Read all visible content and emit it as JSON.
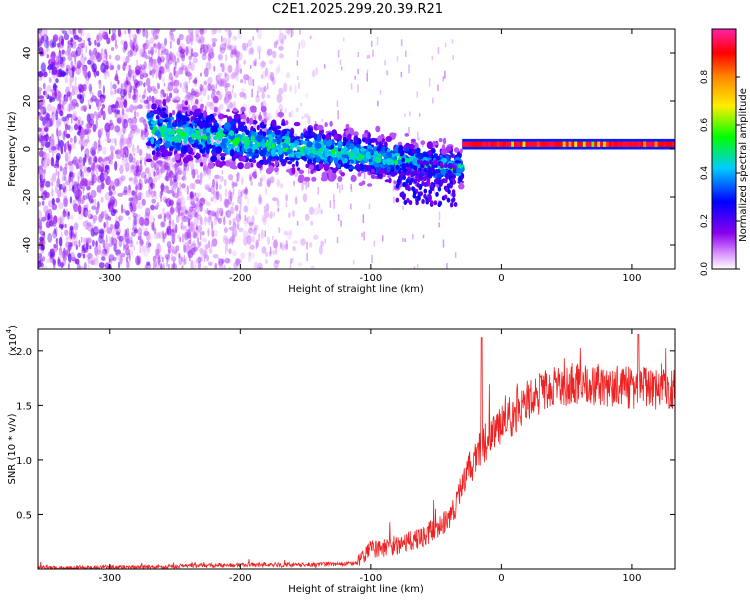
{
  "title": "C2E1.2025.299.20.39.R21",
  "chart_data": [
    {
      "type": "heatmap",
      "xlabel": "Height of straight line (km)",
      "ylabel": "Frequency (Hz)",
      "xlim": [
        -355,
        133
      ],
      "ylim": [
        -50,
        50
      ],
      "xticks": [
        -300,
        -200,
        -100,
        0,
        100
      ],
      "yticks": [
        -40,
        -20,
        0,
        20,
        40
      ],
      "colorbar": {
        "label": "Normalized spectral amplitude",
        "ticks": [
          "0.0",
          "0.2",
          "0.4",
          "0.6",
          "0.8"
        ],
        "range": [
          0,
          1
        ],
        "colors": [
          "#ffffff",
          "#8800ee",
          "#0000ff",
          "#00ccff",
          "#00ff00",
          "#ffee00",
          "#ff8800",
          "#ff0000",
          "#ff22aa"
        ]
      },
      "features": [
        {
          "segment": "diffuse_noise",
          "x_range": [
            -355,
            -130
          ],
          "y_range": [
            -50,
            50
          ],
          "amplitude": 0.15
        },
        {
          "segment": "descending_band",
          "x_range": [
            -270,
            -30
          ],
          "y_start": 8,
          "y_end": -8,
          "amplitude": 0.45
        },
        {
          "segment": "steady_line",
          "x_range": [
            -30,
            133
          ],
          "y": 2,
          "amplitude": 0.95
        }
      ]
    },
    {
      "type": "line",
      "xlabel": "Height of straight line (km)",
      "ylabel": "SNR (10 * v/v)",
      "yscale_label": "(x10",
      "yscale_exp": "4",
      "xlim": [
        -355,
        133
      ],
      "ylim": [
        0,
        2.2
      ],
      "xticks": [
        -300,
        -200,
        -100,
        0,
        100
      ],
      "yticks": [
        "0.5",
        "1.0",
        "1.5",
        "2.0"
      ],
      "color": "#ee2222",
      "profile": [
        {
          "x": -355,
          "y": 0.01
        },
        {
          "x": -260,
          "y": 0.02
        },
        {
          "x": -200,
          "y": 0.04
        },
        {
          "x": -150,
          "y": 0.04
        },
        {
          "x": -110,
          "y": 0.05
        },
        {
          "x": -100,
          "y": 0.18
        },
        {
          "x": -80,
          "y": 0.22
        },
        {
          "x": -60,
          "y": 0.3
        },
        {
          "x": -40,
          "y": 0.45
        },
        {
          "x": -30,
          "y": 0.75
        },
        {
          "x": -20,
          "y": 1.05
        },
        {
          "x": -10,
          "y": 1.2
        },
        {
          "x": 0,
          "y": 1.3
        },
        {
          "x": 20,
          "y": 1.55
        },
        {
          "x": 40,
          "y": 1.68
        },
        {
          "x": 60,
          "y": 1.7
        },
        {
          "x": 80,
          "y": 1.68
        },
        {
          "x": 100,
          "y": 1.66
        },
        {
          "x": 133,
          "y": 1.65
        }
      ],
      "noise_amplitude": 0.14,
      "peaks": [
        {
          "x": -15,
          "y": 2.12
        },
        {
          "x": 105,
          "y": 2.15
        }
      ]
    }
  ]
}
